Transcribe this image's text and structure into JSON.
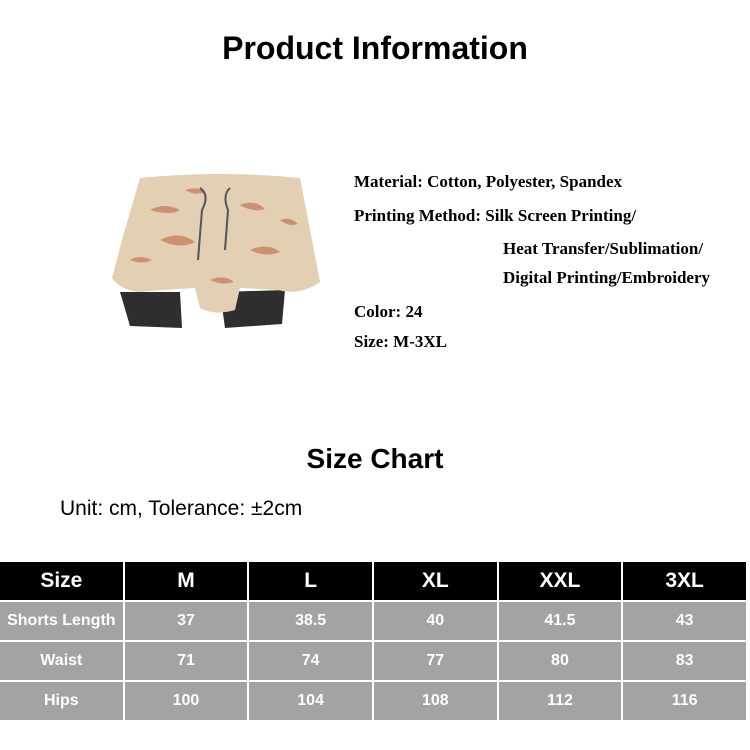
{
  "header": {
    "title": "Product Information"
  },
  "product": {
    "image": "camo-shorts-image",
    "info": {
      "material": "Material: Cotton, Polyester,  Spandex",
      "printing_1": "Printing Method: Silk Screen Printing/",
      "printing_2": "Heat Transfer/Sublimation/",
      "printing_3": "Digital Printing/Embroidery",
      "color": "Color: 24",
      "size": "Size: M-3XL"
    }
  },
  "size_chart": {
    "title": "Size Chart",
    "unit": "Unit: cm, Tolerance: ±2cm",
    "headers": [
      "Size",
      "M",
      "L",
      "XL",
      "XXL",
      "3XL"
    ],
    "rows": [
      [
        "Shorts Length",
        "37",
        "38.5",
        "40",
        "41.5",
        "43"
      ],
      [
        "Waist",
        "71",
        "74",
        "77",
        "80",
        "83"
      ],
      [
        "Hips",
        "100",
        "104",
        "108",
        "112",
        "116"
      ]
    ],
    "colors": {
      "header_bg": "#000000",
      "cell_bg": "#a3a3a3",
      "text": "#ffffff"
    }
  }
}
